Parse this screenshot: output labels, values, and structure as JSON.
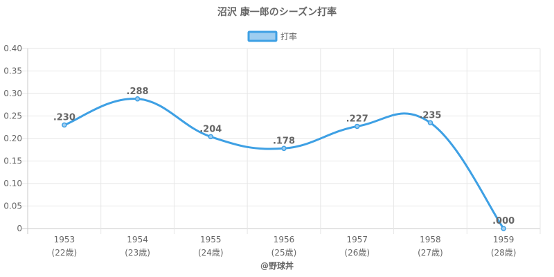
{
  "chart_data": {
    "type": "line",
    "title": "沼沢 康一郎のシーズン打率",
    "legend": {
      "label": "打率",
      "position": "top"
    },
    "categories": [
      "1953",
      "1954",
      "1955",
      "1956",
      "1957",
      "1958",
      "1959"
    ],
    "category_sublabels": [
      "(22歳)",
      "(23歳)",
      "(24歳)",
      "(25歳)",
      "(26歳)",
      "(27歳)",
      "(28歳)"
    ],
    "series": [
      {
        "name": "打率",
        "values": [
          0.23,
          0.288,
          0.204,
          0.178,
          0.227,
          0.235,
          0.0
        ],
        "labels": [
          ".230",
          ".288",
          ".204",
          ".178",
          ".227",
          ".235",
          ".000"
        ]
      }
    ],
    "ylim": [
      0,
      0.4
    ],
    "yticks": [
      0,
      0.05,
      0.1,
      0.15,
      0.2,
      0.25,
      0.3,
      0.35,
      0.4
    ],
    "ytick_labels": [
      "0",
      "0.05",
      "0.10",
      "0.15",
      "0.20",
      "0.25",
      "0.30",
      "0.35",
      "0.40"
    ],
    "grid": true,
    "colors": {
      "line": "#3ea0e4",
      "fill": "#9ecdf0",
      "grid": "#e6e6e6",
      "text": "#666666"
    }
  },
  "credit": "@野球丼"
}
